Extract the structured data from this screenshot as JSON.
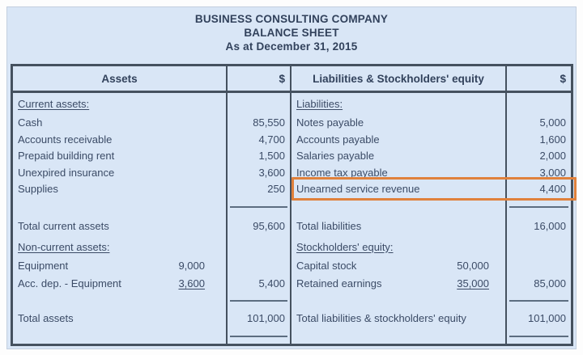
{
  "header": {
    "company": "BUSINESS CONSULTING COMPANY",
    "statement": "BALANCE SHEET",
    "date": "As at December 31, 2015"
  },
  "columns": {
    "assets_header": "Assets",
    "assets_currency": "$",
    "liabilities_header": "Liabilities & Stockholders' equity",
    "liabilities_currency": "$"
  },
  "assets": {
    "current_heading": "Current assets:",
    "items": [
      {
        "label": "Cash",
        "amount": "85,550"
      },
      {
        "label": "Accounts receivable",
        "amount": "4,700"
      },
      {
        "label": "Prepaid building rent",
        "amount": "1,500"
      },
      {
        "label": "Unexpired insurance",
        "amount": "3,600"
      },
      {
        "label": "Supplies",
        "amount": "250"
      }
    ],
    "total_current": {
      "label": "Total current assets",
      "amount": "95,600"
    },
    "noncurrent_heading": "Non-current assets:",
    "equipment": {
      "label": "Equipment",
      "sub_amount": "9,000"
    },
    "acc_dep_equipment": {
      "label": "Acc. dep. - Equipment",
      "sub_amount": "3,600",
      "amount": "5,400"
    },
    "total_assets": {
      "label": "Total assets",
      "amount": "101,000"
    }
  },
  "liabilities_equity": {
    "liabilities_heading": "Liabilities:",
    "items": [
      {
        "label": "Notes payable",
        "amount": "5,000"
      },
      {
        "label": "Accounts payable",
        "amount": "1,600"
      },
      {
        "label": "Salaries payable",
        "amount": "2,000"
      },
      {
        "label": "Income tax payable",
        "amount": "3,000"
      },
      {
        "label": "Unearned service revenue",
        "amount": "4,400",
        "highlighted": true
      }
    ],
    "total_liabilities": {
      "label": "Total liabilities",
      "amount": "16,000"
    },
    "equity_heading": "Stockholders' equity:",
    "capital_stock": {
      "label": "Capital stock",
      "sub_amount": "50,000"
    },
    "retained_earnings": {
      "label": "Retained earnings",
      "sub_amount": "35,000",
      "amount": "85,000"
    },
    "total": {
      "label": "Total liabilities & stockholders' equity",
      "amount": "101,000"
    }
  },
  "highlight": {
    "item": "Unearned service revenue"
  },
  "theme": {
    "card_bg": "#d9e6f6",
    "border": "#45515f",
    "rule": "#5c6d80",
    "text": "#3b4b66",
    "text_bold": "#32425c",
    "accent": "#e0813c"
  }
}
